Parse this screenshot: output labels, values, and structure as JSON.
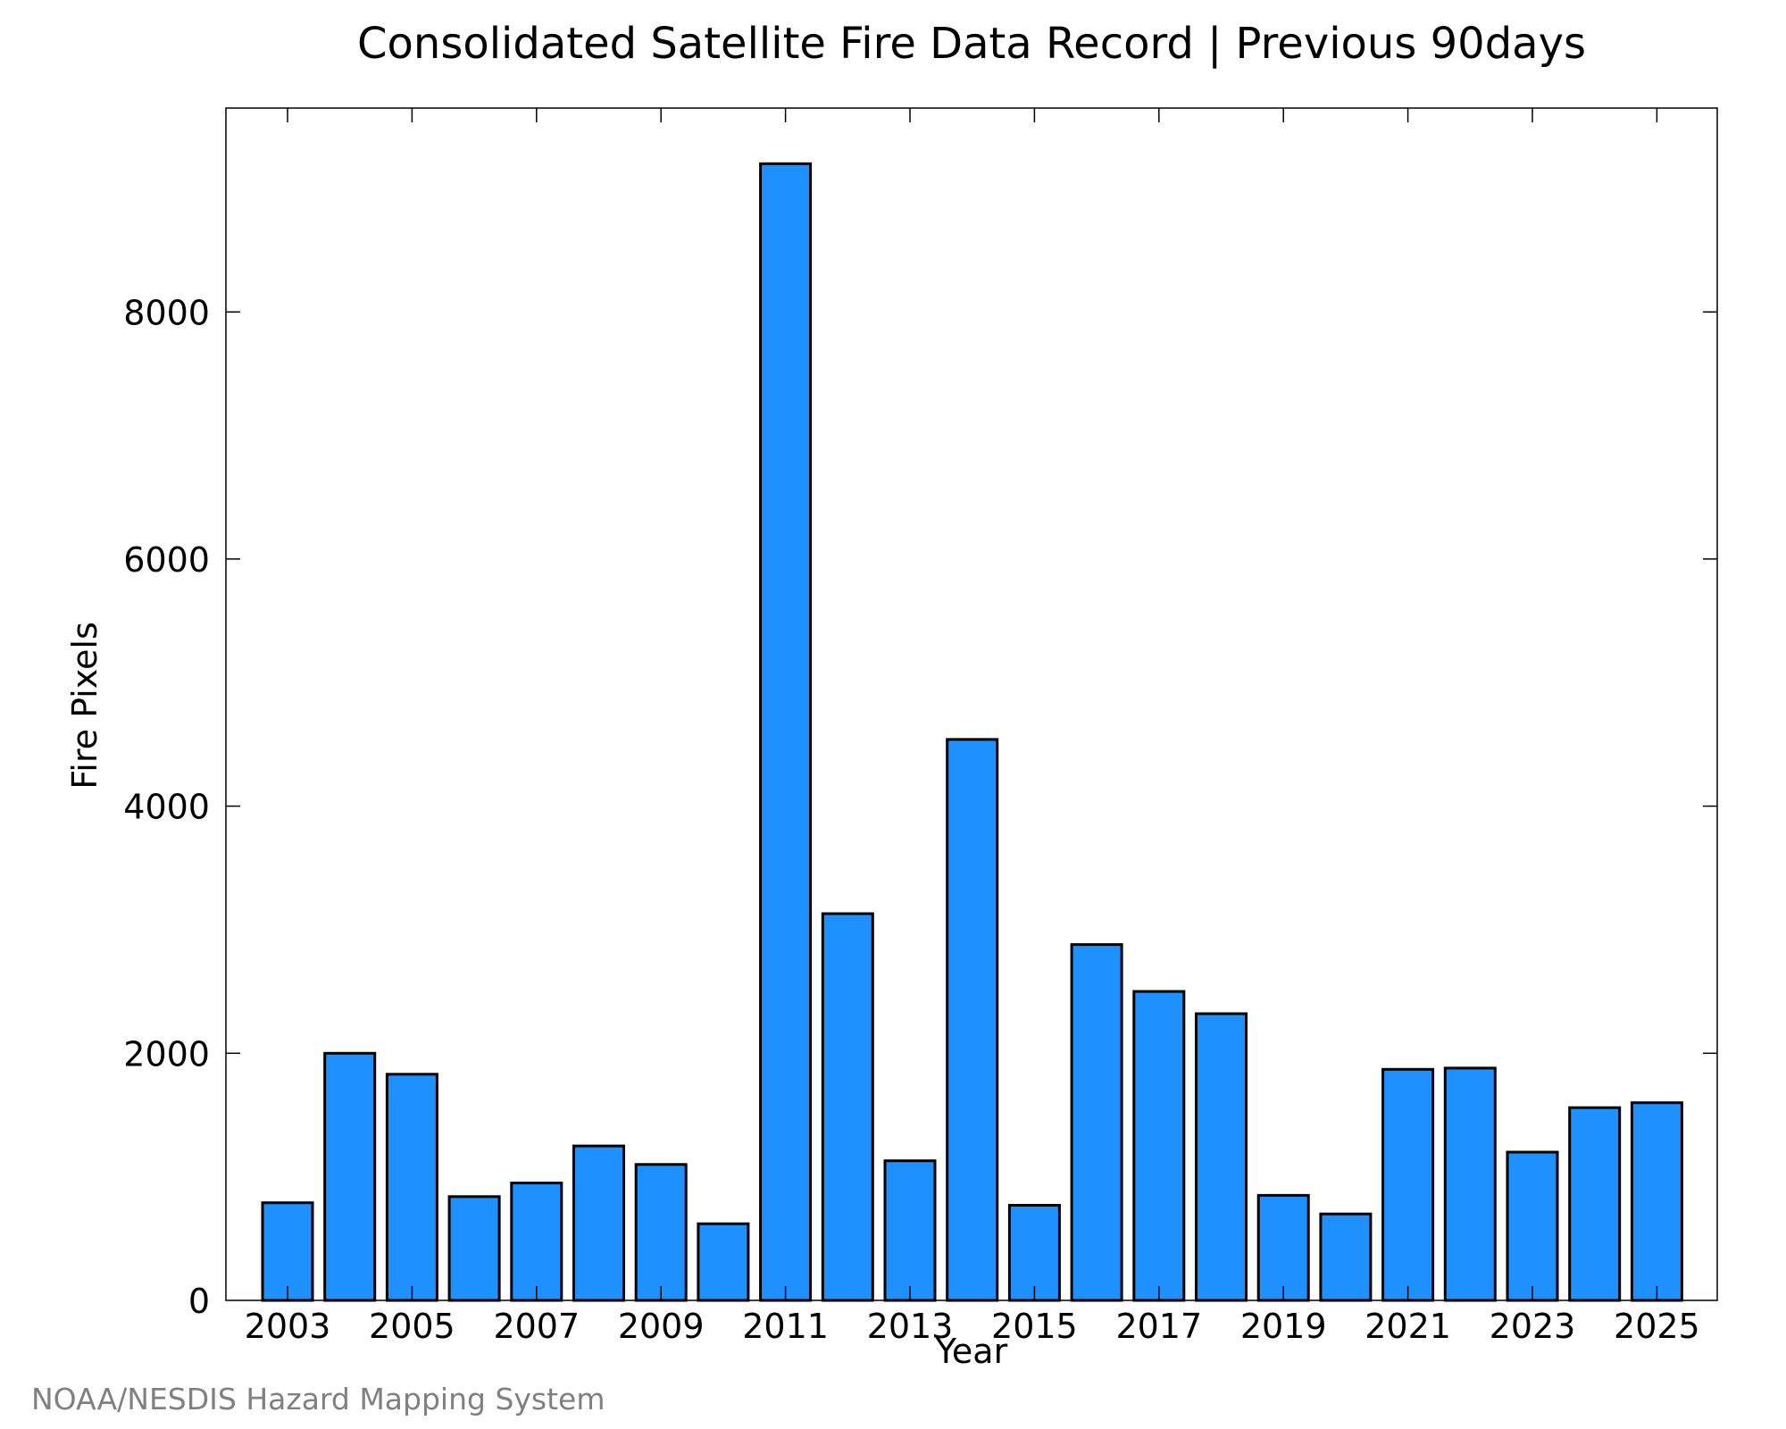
{
  "chart_data": {
    "type": "bar",
    "title": "Consolidated Satellite Fire Data Record | Previous 90days",
    "xlabel": "Year",
    "ylabel": "Fire Pixels",
    "categories": [
      "2003",
      "2004",
      "2005",
      "2006",
      "2007",
      "2008",
      "2009",
      "2010",
      "2011",
      "2012",
      "2013",
      "2014",
      "2015",
      "2016",
      "2017",
      "2018",
      "2019",
      "2020",
      "2021",
      "2022",
      "2023",
      "2024",
      "2025"
    ],
    "values": [
      790,
      2000,
      1830,
      840,
      950,
      1250,
      1100,
      620,
      9200,
      3130,
      1130,
      4540,
      770,
      2880,
      2500,
      2320,
      850,
      700,
      1870,
      1880,
      1200,
      1560,
      1600
    ],
    "x_ticks": [
      "2003",
      "2005",
      "2007",
      "2009",
      "2011",
      "2013",
      "2015",
      "2017",
      "2019",
      "2021",
      "2023",
      "2025"
    ],
    "y_ticks": [
      0,
      2000,
      4000,
      6000,
      8000
    ],
    "ylim": [
      0,
      9650
    ],
    "grid": false,
    "bar_color": "#1e90ff",
    "bar_edge_color": "#000000"
  },
  "credit": {
    "text": "NOAA/NESDIS Hazard Mapping System",
    "color": "#808080"
  }
}
